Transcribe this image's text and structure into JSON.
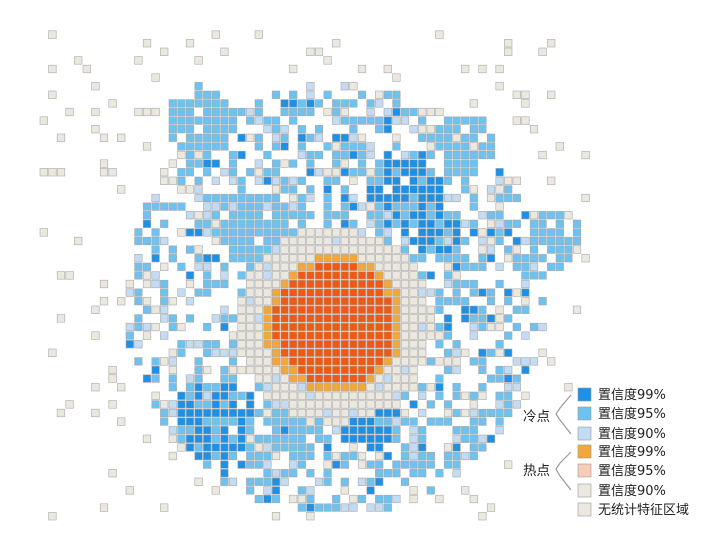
{
  "colors": {
    "cold_99": "#1e90e6",
    "cold_95": "#6ec2f0",
    "cold_90": "#c3dcf3",
    "hot_99": "#ee5a14",
    "hot_99_edge": "#f2a73a",
    "hot_95": "#f8cdb8",
    "hot_90": "#ebe8e0",
    "no_stat": "#ebe8e0",
    "brace": "#9a9a9a"
  },
  "legend": {
    "cold_group": "冷点",
    "hot_group": "热点",
    "items": [
      {
        "label": "置信度99%",
        "color_key": "cold_99"
      },
      {
        "label": "置信度95%",
        "color_key": "cold_95"
      },
      {
        "label": "置信度90%",
        "color_key": "cold_90"
      },
      {
        "label": "置信度99%",
        "color_key": "hot_99_edge"
      },
      {
        "label": "置信度95%",
        "color_key": "hot_95"
      },
      {
        "label": "置信度90%",
        "color_key": "hot_90"
      },
      {
        "label": "无统计特征区域",
        "color_key": "no_stat"
      }
    ]
  }
}
